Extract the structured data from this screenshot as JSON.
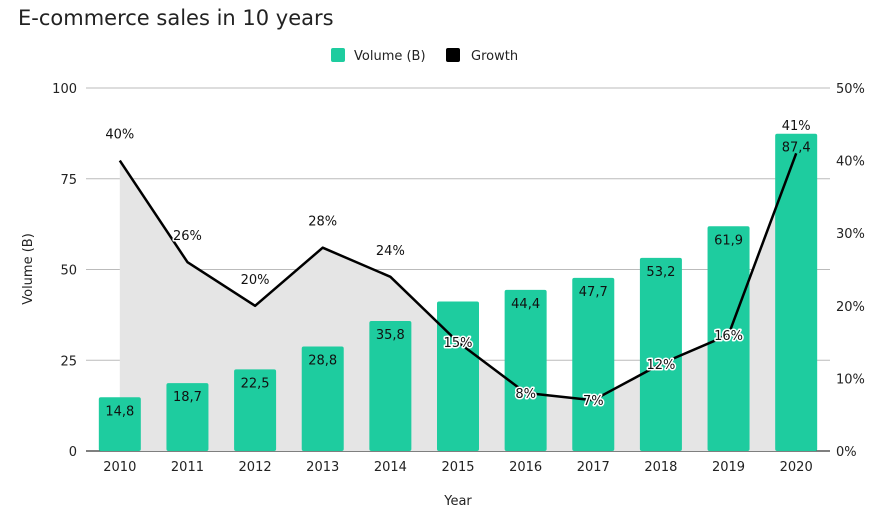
{
  "chart_data": {
    "type": "bar",
    "title": "E-commerce sales in 10 years",
    "xlabel": "Year",
    "ylabel": "Volume (B)",
    "categories": [
      "2010",
      "2011",
      "2012",
      "2013",
      "2014",
      "2015",
      "2016",
      "2017",
      "2018",
      "2019",
      "2020"
    ],
    "series": [
      {
        "name": "Volume (B)",
        "type": "bar",
        "axis": "left",
        "color": "#1ecc9f",
        "values": [
          14.8,
          18.7,
          22.5,
          28.8,
          35.8,
          41.2,
          44.4,
          47.7,
          53.2,
          61.9,
          87.4
        ],
        "labels": [
          "14,8",
          "18,7",
          "22,5",
          "28,8",
          "35,8",
          "",
          "44,4",
          "47,7",
          "53,2",
          "61,9",
          "87,4"
        ]
      },
      {
        "name": "Growth",
        "type": "line",
        "axis": "right",
        "color": "#000000",
        "area_color": "#e5e5e5",
        "values": [
          40,
          26,
          20,
          28,
          24,
          15,
          8,
          7,
          12,
          16,
          41
        ],
        "labels": [
          "40%",
          "26%",
          "20%",
          "28%",
          "24%",
          "15%",
          "8%",
          "7%",
          "12%",
          "16%",
          "41%"
        ]
      }
    ],
    "y_left": {
      "min": 0,
      "max": 100,
      "ticks": [
        "0",
        "25",
        "50",
        "75",
        "100"
      ]
    },
    "y_right": {
      "min": 0,
      "max": 50,
      "ticks": [
        "0%",
        "10%",
        "20%",
        "30%",
        "40%",
        "50%"
      ]
    },
    "grid": true,
    "legend": "top-center"
  }
}
